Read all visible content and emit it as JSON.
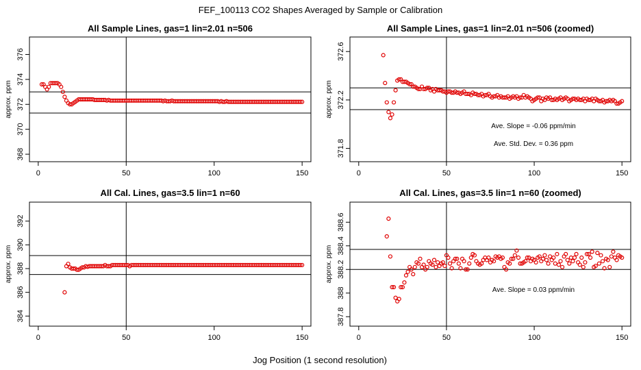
{
  "figure": {
    "title": "FEF_100113  CO2 Shapes Averaged by Sample or Calibration",
    "xlabel": "Jog Position (1 second resolution)"
  },
  "chart_data": [
    {
      "type": "scatter",
      "title": "All Sample Lines, gas=1 lin=2.01 n=506",
      "ylabel": "approx. ppm",
      "xlim": [
        -5,
        155
      ],
      "ylim": [
        367.4,
        377.4
      ],
      "xticks": [
        0,
        50,
        100,
        150
      ],
      "yticks": [
        368,
        370,
        372,
        374,
        376
      ],
      "hlines": [
        373.0,
        371.3
      ],
      "vline": 50,
      "annotations": [],
      "points": {
        "x_start": 2,
        "x_end": 150,
        "y": [
          373.6,
          373.6,
          373.4,
          373.2,
          373.4,
          373.7,
          373.7,
          373.7,
          373.7,
          373.7,
          373.6,
          373.4,
          373.0,
          372.6,
          372.3,
          372.1,
          372.0,
          372.0,
          372.1,
          372.2,
          372.3,
          372.4,
          372.4,
          372.4,
          372.4,
          372.4,
          372.4,
          372.4,
          372.4,
          372.4,
          372.35,
          372.35,
          372.35,
          372.35,
          372.35,
          372.35,
          372.35,
          372.3,
          372.35,
          372.3,
          372.3,
          372.3,
          372.3,
          372.3,
          372.3,
          372.3,
          372.3,
          372.3,
          372.3,
          372.3,
          372.3,
          372.3,
          372.3,
          372.3,
          372.3,
          372.3,
          372.3,
          372.3,
          372.3,
          372.3,
          372.3,
          372.3,
          372.3,
          372.3,
          372.3,
          372.3,
          372.3,
          372.3,
          372.3,
          372.25,
          372.3,
          372.25,
          372.25,
          372.25,
          372.3,
          372.25,
          372.25,
          372.25,
          372.25,
          372.25,
          372.25,
          372.25,
          372.25,
          372.25,
          372.25,
          372.25,
          372.25,
          372.25,
          372.25,
          372.25,
          372.25,
          372.25,
          372.25,
          372.25,
          372.25,
          372.25,
          372.25,
          372.25,
          372.25,
          372.25,
          372.25,
          372.2,
          372.25,
          372.2,
          372.2,
          372.25,
          372.2,
          372.2,
          372.2,
          372.2,
          372.2,
          372.2,
          372.2,
          372.2,
          372.2,
          372.2,
          372.2,
          372.2,
          372.2,
          372.2,
          372.2,
          372.2,
          372.2,
          372.2,
          372.2,
          372.2,
          372.2,
          372.2,
          372.2,
          372.2,
          372.2,
          372.2,
          372.2,
          372.2,
          372.2,
          372.2,
          372.2,
          372.2,
          372.2,
          372.2,
          372.2,
          372.2,
          372.2,
          372.2,
          372.2,
          372.2,
          372.2,
          372.2,
          372.2
        ]
      }
    },
    {
      "type": "scatter",
      "title": "All Sample Lines, gas=1 lin=2.01 n=506 (zoomed)",
      "ylabel": "approx. ppm",
      "xlim": [
        -5,
        155
      ],
      "ylim": [
        371.69,
        372.72
      ],
      "xticks": [
        0,
        50,
        100,
        150
      ],
      "yticks": [
        371.8,
        372.2,
        372.6
      ],
      "hlines": [
        372.3,
        372.12
      ],
      "vline": 50,
      "annotations": [
        "Ave. Slope =  -0.06  ppm/min",
        "Ave. Std. Dev. =  0.36  ppm"
      ],
      "points": {
        "x_start": 14,
        "x_end": 150,
        "y": [
          372.57,
          372.34,
          372.18,
          372.1,
          372.05,
          372.08,
          372.18,
          372.28,
          372.36,
          372.37,
          372.37,
          372.35,
          372.35,
          372.35,
          372.34,
          372.33,
          372.33,
          372.31,
          372.31,
          372.3,
          372.29,
          372.29,
          372.31,
          372.29,
          372.29,
          372.3,
          372.3,
          372.28,
          372.29,
          372.27,
          372.29,
          372.28,
          372.28,
          372.28,
          372.27,
          372.27,
          372.26,
          372.27,
          372.27,
          372.26,
          372.26,
          372.27,
          372.26,
          372.26,
          372.25,
          372.26,
          372.27,
          372.25,
          372.25,
          372.25,
          372.24,
          372.26,
          372.25,
          372.25,
          372.24,
          372.24,
          372.25,
          372.23,
          372.24,
          372.24,
          372.25,
          372.23,
          372.22,
          372.23,
          372.23,
          372.24,
          372.22,
          372.23,
          372.22,
          372.22,
          372.22,
          372.23,
          372.21,
          372.22,
          372.23,
          372.22,
          372.23,
          372.21,
          372.22,
          372.22,
          372.24,
          372.22,
          372.23,
          372.22,
          372.21,
          372.19,
          372.2,
          372.21,
          372.22,
          372.22,
          372.19,
          372.21,
          372.2,
          372.22,
          372.21,
          372.22,
          372.2,
          372.2,
          372.21,
          372.2,
          372.21,
          372.22,
          372.2,
          372.21,
          372.22,
          372.21,
          372.19,
          372.2,
          372.21,
          372.21,
          372.2,
          372.21,
          372.2,
          372.2,
          372.21,
          372.19,
          372.21,
          372.2,
          372.2,
          372.21,
          372.19,
          372.21,
          372.2,
          372.19,
          372.19,
          372.2,
          372.18,
          372.19,
          372.19,
          372.2,
          372.19,
          372.2,
          372.19,
          372.17,
          372.17,
          372.18,
          372.19
        ]
      }
    },
    {
      "type": "scatter",
      "title": "All Cal. Lines, gas=3.5 lin=1 n=60",
      "ylabel": "approx. ppm",
      "xlim": [
        -5,
        155
      ],
      "ylim": [
        383.15,
        393.6
      ],
      "xticks": [
        0,
        50,
        100,
        150
      ],
      "yticks": [
        384,
        386,
        388,
        390,
        392
      ],
      "hlines": [
        389.1,
        387.5
      ],
      "vline": 50,
      "annotations": [],
      "points": {
        "x_start": 15,
        "x_end": 150,
        "y": [
          386.0,
          388.2,
          388.4,
          388.1,
          388.0,
          388.0,
          388.0,
          387.9,
          387.9,
          388.0,
          388.1,
          388.1,
          388.2,
          388.15,
          388.2,
          388.2,
          388.2,
          388.2,
          388.2,
          388.2,
          388.2,
          388.2,
          388.2,
          388.3,
          388.2,
          388.2,
          388.2,
          388.3,
          388.3,
          388.3,
          388.3,
          388.3,
          388.3,
          388.3,
          388.3,
          388.3,
          388.3,
          388.2,
          388.3,
          388.3,
          388.3,
          388.3,
          388.3,
          388.3,
          388.3,
          388.3,
          388.3,
          388.3,
          388.3,
          388.3,
          388.3,
          388.3,
          388.3,
          388.3,
          388.3,
          388.3,
          388.3,
          388.3,
          388.3,
          388.3,
          388.3,
          388.3,
          388.3,
          388.3,
          388.3,
          388.3,
          388.3,
          388.3,
          388.3,
          388.3,
          388.3,
          388.3,
          388.3,
          388.3,
          388.3,
          388.3,
          388.3,
          388.3,
          388.3,
          388.3,
          388.3,
          388.3,
          388.3,
          388.3,
          388.3,
          388.3,
          388.3,
          388.3,
          388.3,
          388.3,
          388.3,
          388.3,
          388.3,
          388.3,
          388.3,
          388.3,
          388.3,
          388.3,
          388.3,
          388.3,
          388.3,
          388.3,
          388.3,
          388.3,
          388.3,
          388.3,
          388.3,
          388.3,
          388.3,
          388.3,
          388.3,
          388.3,
          388.3,
          388.3,
          388.3,
          388.3,
          388.3,
          388.3,
          388.3,
          388.3,
          388.3,
          388.3,
          388.3,
          388.3,
          388.3,
          388.3,
          388.3,
          388.3,
          388.3,
          388.3,
          388.3,
          388.3,
          388.3,
          388.3,
          388.3,
          388.3
        ]
      }
    },
    {
      "type": "scatter",
      "title": "All Cal. Lines, gas=3.5 lin=1 n=60 (zoomed)",
      "ylabel": "approx. ppm",
      "xlim": [
        -5,
        155
      ],
      "ylim": [
        387.72,
        388.77
      ],
      "xticks": [
        0,
        50,
        100,
        150
      ],
      "yticks": [
        387.8,
        388.0,
        388.2,
        388.4,
        388.6
      ],
      "hlines": [
        388.37,
        388.2
      ],
      "vline": 50,
      "annotations": [
        "Ave. Slope =  0.03  ppm/min"
      ],
      "points": {
        "x_start": 16,
        "x_end": 150,
        "y": [
          388.48,
          388.63,
          388.31,
          388.05,
          388.05,
          387.96,
          387.93,
          387.95,
          388.05,
          388.05,
          388.09,
          388.15,
          388.18,
          388.22,
          388.2,
          388.16,
          388.22,
          388.26,
          388.25,
          388.29,
          388.22,
          388.24,
          388.2,
          388.22,
          388.27,
          388.25,
          388.24,
          388.28,
          388.22,
          388.26,
          388.23,
          388.25,
          388.26,
          388.23,
          388.32,
          388.3,
          388.25,
          388.21,
          388.27,
          388.29,
          388.29,
          388.25,
          388.21,
          388.29,
          388.27,
          388.2,
          388.2,
          388.25,
          388.3,
          388.33,
          388.32,
          388.27,
          388.25,
          388.24,
          388.25,
          388.28,
          388.3,
          388.28,
          388.3,
          388.26,
          388.28,
          388.27,
          388.31,
          388.3,
          388.31,
          388.29,
          388.3,
          388.22,
          388.2,
          388.26,
          388.25,
          388.29,
          388.29,
          388.32,
          388.36,
          388.3,
          388.25,
          388.25,
          388.26,
          388.27,
          388.3,
          388.3,
          388.27,
          388.29,
          388.28,
          388.26,
          388.3,
          388.31,
          388.27,
          388.29,
          388.32,
          388.28,
          388.25,
          388.31,
          388.28,
          388.3,
          388.25,
          388.33,
          388.24,
          388.27,
          388.22,
          388.31,
          388.33,
          388.28,
          388.25,
          388.3,
          388.27,
          388.3,
          388.33,
          388.26,
          388.24,
          388.3,
          388.22,
          388.26,
          388.33,
          388.33,
          388.3,
          388.35,
          388.22,
          388.23,
          388.34,
          388.25,
          388.32,
          388.27,
          388.21,
          388.29,
          388.28,
          388.22,
          388.31,
          388.35,
          388.3,
          388.28,
          388.32,
          388.31,
          388.3,
          388.33,
          388.41
        ]
      }
    }
  ]
}
